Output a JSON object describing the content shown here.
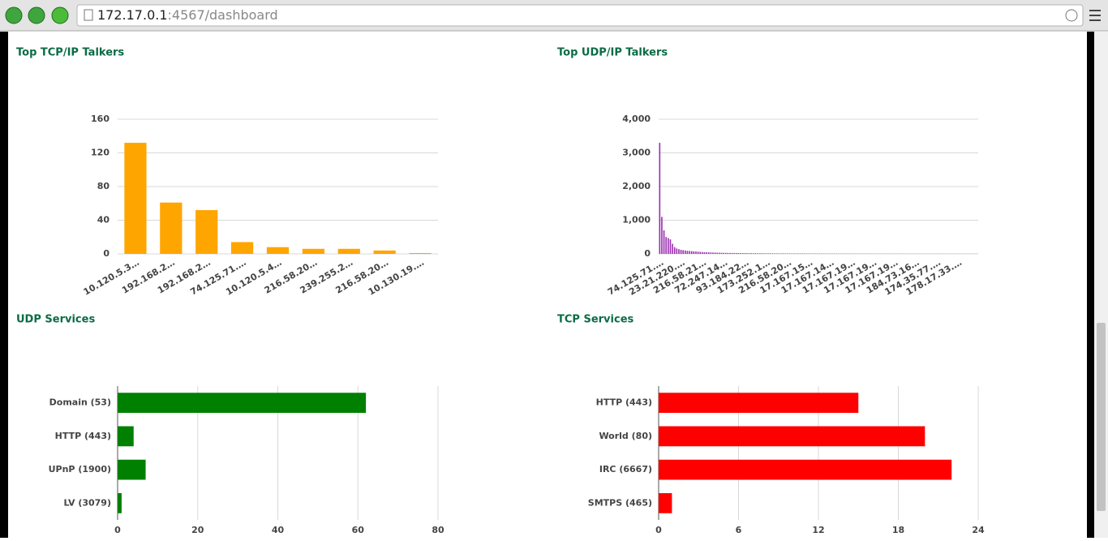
{
  "browser": {
    "url_host": "172.17.0.1",
    "url_path": ":4567/dashboard"
  },
  "chart_data": [
    {
      "type": "bar",
      "title": "Top TCP/IP Talkers",
      "color": "#ffa500",
      "grid": true,
      "categories": [
        "10.120.5.3…",
        "192.168.2…",
        "192.168.2…",
        "74.125.71.…",
        "10.120.5.4…",
        "216.58.20…",
        "239.255.2…",
        "216.58.20…",
        "10.130.19.…"
      ],
      "values": [
        132,
        61,
        52,
        14,
        8,
        6,
        6,
        4,
        1
      ],
      "ylim": [
        0,
        160
      ],
      "yticks": [
        0,
        40,
        80,
        120,
        160
      ]
    },
    {
      "type": "bar",
      "title": "Top UDP/IP Talkers",
      "color": "#9b30b0",
      "grid": true,
      "categories": [
        "74.125.71.…",
        null,
        null,
        null,
        null,
        null,
        null,
        null,
        null,
        null,
        "23.21.220.…",
        null,
        null,
        null,
        null,
        null,
        null,
        null,
        null,
        null,
        "216.58.21…",
        null,
        null,
        null,
        null,
        null,
        null,
        null,
        null,
        null,
        "72.247.14…",
        null,
        null,
        null,
        null,
        null,
        null,
        null,
        null,
        null,
        "93.184.22…",
        null,
        null,
        null,
        null,
        null,
        null,
        null,
        null,
        null,
        "173.252.1…",
        null,
        null,
        null,
        null,
        null,
        null,
        null,
        null,
        null,
        "216.58.20…",
        null,
        null,
        null,
        null,
        null,
        null,
        null,
        null,
        null,
        "17.167.15…",
        null,
        null,
        null,
        null,
        null,
        null,
        null,
        null,
        null,
        "17.167.14…",
        null,
        null,
        null,
        null,
        null,
        null,
        null,
        null,
        null,
        "17.167.19…",
        null,
        null,
        null,
        null,
        null,
        null,
        null,
        null,
        null,
        "17.167.19…",
        null,
        null,
        null,
        null,
        null,
        null,
        null,
        null,
        null,
        "17.167.19…",
        null,
        null,
        null,
        null,
        null,
        null,
        null,
        null,
        null,
        "184.73.16…",
        null,
        null,
        null,
        null,
        null,
        null,
        null,
        null,
        null,
        "174.35.77.…",
        null,
        null,
        null,
        null,
        null,
        null,
        null,
        null,
        null,
        "178.17.33.…",
        null,
        null,
        null,
        null,
        null,
        null,
        null,
        null,
        null
      ],
      "values": [
        3300,
        1100,
        700,
        500,
        470,
        430,
        300,
        200,
        160,
        140,
        120,
        110,
        100,
        90,
        85,
        80,
        75,
        70,
        65,
        60,
        55,
        50,
        48,
        45,
        42,
        40,
        38,
        36,
        34,
        32,
        30,
        29,
        28,
        27,
        26,
        25,
        24,
        23,
        22,
        21,
        20,
        20,
        19,
        19,
        18,
        18,
        17,
        17,
        16,
        16,
        15,
        15,
        15,
        14,
        14,
        14,
        13,
        13,
        13,
        12,
        12,
        12,
        12,
        11,
        11,
        11,
        11,
        10,
        10,
        10,
        10,
        10,
        9,
        9,
        9,
        9,
        9,
        8,
        8,
        8,
        8,
        8,
        8,
        8,
        7,
        7,
        7,
        7,
        7,
        7,
        7,
        6,
        6,
        6,
        6,
        6,
        6,
        6,
        6,
        6,
        5,
        5,
        5,
        5,
        5,
        5,
        5,
        5,
        5,
        5,
        5,
        5,
        5,
        5,
        5,
        4,
        4,
        4,
        4,
        4,
        4,
        4,
        4,
        4,
        4,
        4,
        4,
        4,
        4,
        4,
        4,
        4,
        4,
        4,
        3,
        3,
        3,
        3,
        3,
        3,
        3,
        3,
        3,
        3,
        3,
        3,
        3,
        3,
        3,
        3
      ],
      "ylim": [
        0,
        4000
      ],
      "yticks": [
        0,
        {
          "value": 1000,
          "label": "1,000"
        },
        {
          "value": 2000,
          "label": "2,000"
        },
        {
          "value": 3000,
          "label": "3,000"
        },
        {
          "value": 4000,
          "label": "4,000"
        }
      ]
    },
    {
      "type": "barh",
      "title": "UDP Services",
      "color": "#008000",
      "grid": true,
      "categories": [
        "Domain (53)",
        "HTTP (443)",
        "UPnP (1900)",
        "LV (3079)"
      ],
      "values": [
        62,
        4,
        7,
        1
      ],
      "xlim": [
        0,
        80
      ],
      "xticks": [
        0,
        20,
        40,
        60,
        80
      ]
    },
    {
      "type": "barh",
      "title": "TCP Services",
      "color": "#ff0000",
      "grid": true,
      "categories": [
        "HTTP (443)",
        "World (80)",
        "IRC (6667)",
        "SMTPS (465)"
      ],
      "values": [
        15,
        20,
        22,
        1
      ],
      "xlim": [
        0,
        24
      ],
      "xticks": [
        0,
        6,
        12,
        18,
        24
      ]
    }
  ]
}
